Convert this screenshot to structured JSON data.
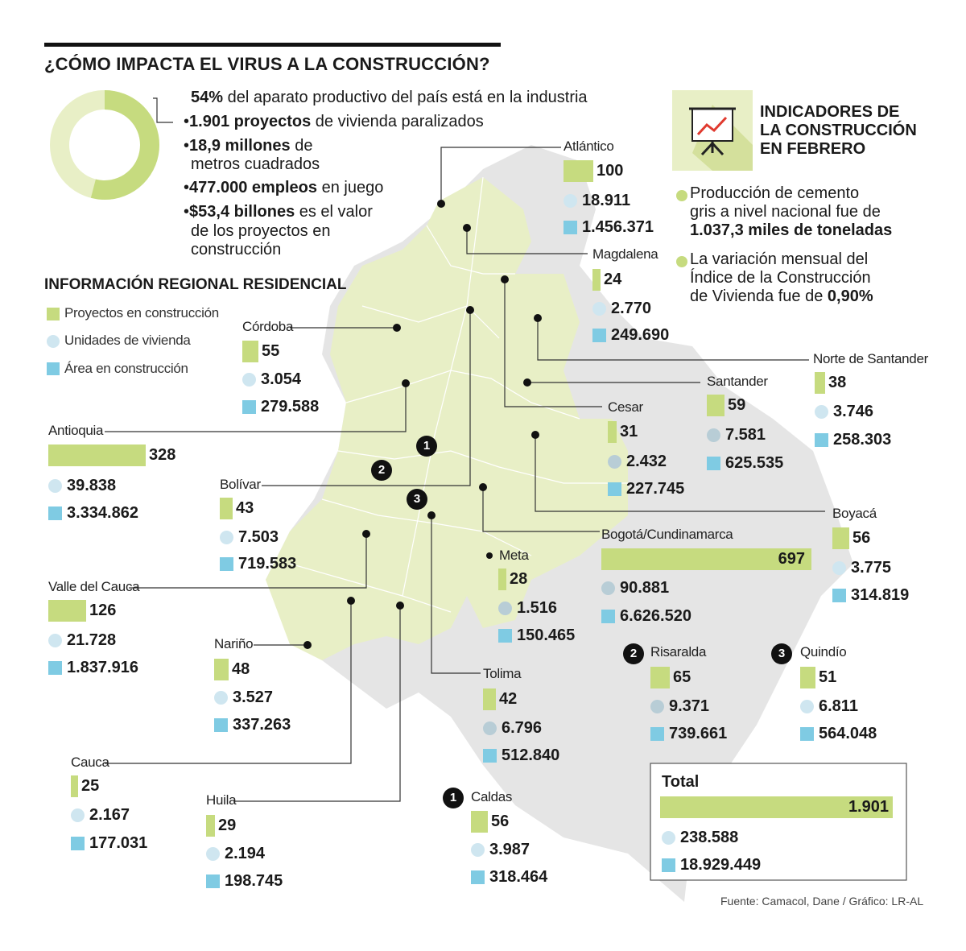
{
  "title": "¿CÓMO IMPACTA EL VIRUS A LA CONSTRUCCIÓN?",
  "colors": {
    "bar": "#c6db7f",
    "circle": "#cfe6f0",
    "square": "#7fcbe3",
    "map_highlight": "#e8efc6",
    "map_base": "#e5e5e5"
  },
  "donut_percent": 54,
  "bullets": [
    {
      "bold": "54%",
      "text": " del aparato productivo del país está en la industria"
    },
    {
      "bold": "1.901 proyectos",
      "text": " de vivienda paralizados"
    },
    {
      "bold": "18,9 millones",
      "text": " de"
    },
    {
      "bold": "",
      "text": "metros cuadrados"
    },
    {
      "bold": "477.000 empleos",
      "text": " en juego"
    },
    {
      "bold": "$53,4 billones",
      "text": " es el valor"
    },
    {
      "bold": "",
      "text": "de los proyectos en"
    },
    {
      "bold": "",
      "text": "construcción"
    }
  ],
  "indicators": {
    "title_lines": [
      "INDICADORES DE",
      "LA CONSTRUCCIÓN",
      "EN FEBRERO"
    ],
    "icon": "presentation-chart-icon",
    "item1": [
      "Producción de cemento",
      "gris a nivel nacional fue de",
      "1.037,3 miles de toneladas"
    ],
    "item2": [
      "La variación mensual del",
      "Índice de la Construcción",
      "de Vivienda fue de ",
      "0,90%"
    ]
  },
  "regional": {
    "title": "INFORMACIÓN REGIONAL RESIDENCIAL",
    "legend": [
      "Proyectos en construcción",
      "Unidades de vivienda",
      "Área en construcción"
    ]
  },
  "departments": [
    {
      "key": "atlantico",
      "name": "Atlántico",
      "proyectos": "100",
      "unidades": "18.911",
      "area": "1.456.371"
    },
    {
      "key": "magdalena",
      "name": "Magdalena",
      "proyectos": "24",
      "unidades": "2.770",
      "area": "249.690"
    },
    {
      "key": "cordoba",
      "name": "Córdoba",
      "proyectos": "55",
      "unidades": "3.054",
      "area": "279.588"
    },
    {
      "key": "norte",
      "name": "Norte de Santander",
      "proyectos": "38",
      "unidades": "3.746",
      "area": "258.303"
    },
    {
      "key": "santander",
      "name": "Santander",
      "proyectos": "59",
      "unidades": "7.581",
      "area": "625.535"
    },
    {
      "key": "cesar",
      "name": "Cesar",
      "proyectos": "31",
      "unidades": "2.432",
      "area": "227.745"
    },
    {
      "key": "antioquia",
      "name": "Antioquia",
      "proyectos": "328",
      "unidades": "39.838",
      "area": "3.334.862"
    },
    {
      "key": "bolivar",
      "name": "Bolívar",
      "proyectos": "43",
      "unidades": "7.503",
      "area": "719.583"
    },
    {
      "key": "boyaca",
      "name": "Boyacá",
      "proyectos": "56",
      "unidades": "3.775",
      "area": "314.819"
    },
    {
      "key": "bogota",
      "name": "Bogotá/Cundinamarca",
      "proyectos": "697",
      "unidades": "90.881",
      "area": "6.626.520"
    },
    {
      "key": "meta",
      "name": "Meta",
      "proyectos": "28",
      "unidades": "1.516",
      "area": "150.465"
    },
    {
      "key": "valle",
      "name": "Valle del Cauca",
      "proyectos": "126",
      "unidades": "21.728",
      "area": "1.837.916"
    },
    {
      "key": "narino",
      "name": "Nariño",
      "proyectos": "48",
      "unidades": "3.527",
      "area": "337.263"
    },
    {
      "key": "risaralda",
      "name": "Risaralda",
      "badge": "2",
      "proyectos": "65",
      "unidades": "9.371",
      "area": "739.661"
    },
    {
      "key": "quindio",
      "name": "Quindío",
      "badge": "3",
      "proyectos": "51",
      "unidades": "6.811",
      "area": "564.048"
    },
    {
      "key": "tolima",
      "name": "Tolima",
      "proyectos": "42",
      "unidades": "6.796",
      "area": "512.840"
    },
    {
      "key": "cauca",
      "name": "Cauca",
      "proyectos": "25",
      "unidades": "2.167",
      "area": "177.031"
    },
    {
      "key": "huila",
      "name": "Huila",
      "proyectos": "29",
      "unidades": "2.194",
      "area": "198.745"
    },
    {
      "key": "caldas",
      "name": "Caldas",
      "badge": "1",
      "proyectos": "56",
      "unidades": "3.987",
      "area": "318.464"
    }
  ],
  "map_badges": [
    "1",
    "2",
    "3"
  ],
  "total": {
    "label": "Total",
    "proyectos": "1.901",
    "unidades": "238.588",
    "area": "18.929.449"
  },
  "source": "Fuente: Camacol, Dane / Gráfico: LR-AL"
}
